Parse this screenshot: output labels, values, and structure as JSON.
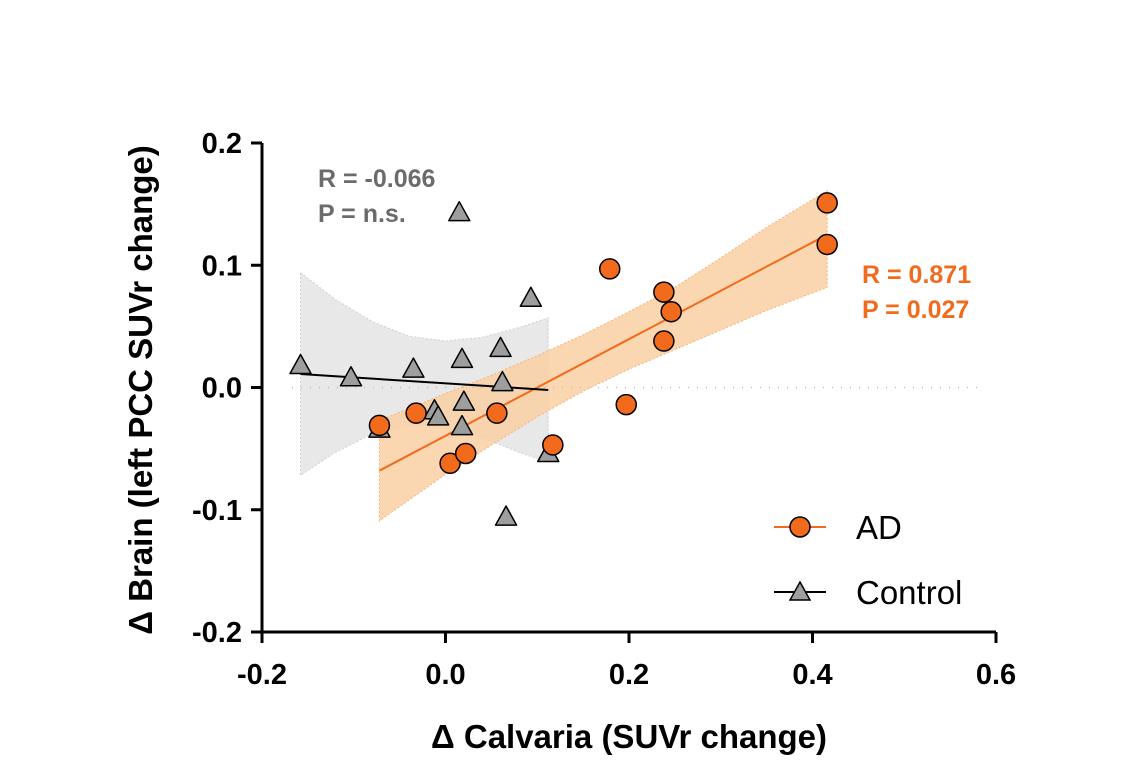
{
  "chart_data": {
    "type": "scatter",
    "title": "",
    "xlabel": "Δ Calvaria (SUVr change)",
    "ylabel": "Δ Brain (left PCC SUVr change)",
    "xlim": [
      -0.2,
      0.6
    ],
    "ylim": [
      -0.2,
      0.2
    ],
    "xticks": [
      -0.2,
      0.0,
      0.2,
      0.4,
      0.6
    ],
    "xtick_labels": [
      "-0.2",
      "0.0",
      "0.2",
      "0.4",
      "0.6"
    ],
    "yticks": [
      -0.2,
      -0.1,
      0.0,
      0.1,
      0.2
    ],
    "ytick_labels": [
      "-0.2",
      "-0.1",
      "0.0",
      "0.1",
      "0.2"
    ],
    "zero_reference_line": "dotted",
    "series": [
      {
        "name": "AD",
        "marker": "circle",
        "color": "#f26b1d",
        "band_color": "#f9cfa3",
        "x": [
          -0.072,
          -0.032,
          0.005,
          0.022,
          0.056,
          0.117,
          0.179,
          0.197,
          0.238,
          0.238,
          0.246,
          0.416,
          0.416
        ],
        "y": [
          -0.031,
          -0.021,
          -0.062,
          -0.054,
          -0.021,
          -0.047,
          0.097,
          -0.014,
          0.078,
          0.038,
          0.062,
          0.151,
          0.117
        ],
        "fit": {
          "x": [
            -0.072,
            0.416
          ],
          "y": [
            -0.068,
            0.125
          ]
        },
        "ci_band": {
          "x": [
            -0.072,
            0.0,
            0.05,
            0.1,
            0.15,
            0.2,
            0.25,
            0.3,
            0.35,
            0.416
          ],
          "upper": [
            -0.027,
            -0.005,
            0.01,
            0.026,
            0.043,
            0.062,
            0.082,
            0.106,
            0.131,
            0.161
          ],
          "lower": [
            -0.109,
            -0.071,
            -0.047,
            -0.024,
            -0.003,
            0.015,
            0.031,
            0.047,
            0.063,
            0.082
          ]
        },
        "stats": {
          "r": "R = 0.871",
          "p": "P = 0.027"
        }
      },
      {
        "name": "Control",
        "marker": "triangle",
        "color": "#9e9e9e",
        "band_color": "#e8e8e8",
        "x": [
          -0.158,
          -0.103,
          -0.072,
          -0.035,
          -0.012,
          -0.008,
          0.015,
          0.018,
          0.02,
          0.018,
          0.06,
          0.062,
          0.066,
          0.093,
          0.112
        ],
        "y": [
          0.018,
          0.008,
          -0.034,
          0.015,
          -0.019,
          -0.024,
          0.143,
          0.023,
          -0.012,
          -0.032,
          0.032,
          0.004,
          -0.106,
          0.073,
          -0.054
        ],
        "fit": {
          "x": [
            -0.158,
            0.112
          ],
          "y": [
            0.011,
            -0.002
          ]
        },
        "ci_band": {
          "x": [
            -0.158,
            -0.12,
            -0.08,
            -0.04,
            0.0,
            0.04,
            0.08,
            0.112
          ],
          "upper": [
            0.094,
            0.072,
            0.054,
            0.042,
            0.038,
            0.041,
            0.049,
            0.057
          ],
          "lower": [
            -0.072,
            -0.053,
            -0.038,
            -0.031,
            -0.033,
            -0.041,
            -0.053,
            -0.061
          ]
        },
        "stats": {
          "r": "R = -0.066",
          "p": "P = n.s."
        }
      }
    ],
    "legend": {
      "position": "bottom-right",
      "entries": [
        "AD",
        "Control"
      ]
    }
  }
}
